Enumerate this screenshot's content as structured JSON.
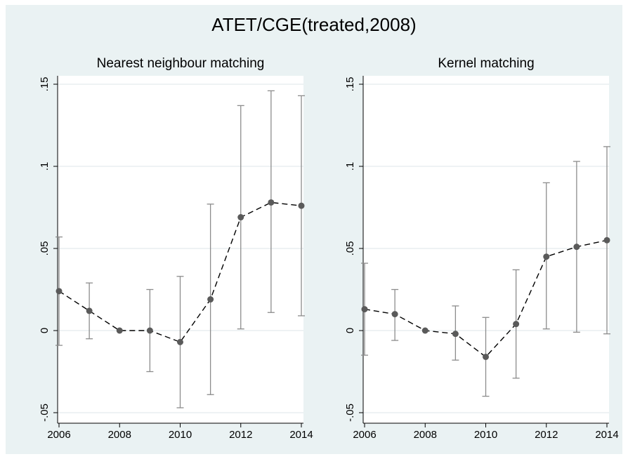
{
  "title": "ATET/CGE(treated,2008)",
  "chart_data": [
    {
      "type": "line",
      "title": "Nearest neighbour matching",
      "x": [
        2006,
        2007,
        2008,
        2009,
        2010,
        2011,
        2012,
        2013,
        2014
      ],
      "y": [
        0.024,
        0.012,
        0.0,
        0.0,
        -0.007,
        0.019,
        0.069,
        0.078,
        0.076
      ],
      "ci_low": [
        -0.009,
        -0.005,
        0.0,
        -0.025,
        -0.047,
        -0.039,
        0.001,
        0.011,
        0.009
      ],
      "ci_high": [
        0.057,
        0.029,
        0.0,
        0.025,
        0.033,
        0.077,
        0.137,
        0.146,
        0.143
      ],
      "xticks": [
        "2006",
        "2008",
        "2010",
        "2012",
        "2014"
      ],
      "yticks": [
        "-.05",
        "0",
        ".05",
        ".1",
        ".15"
      ],
      "xlim": [
        2006,
        2014
      ],
      "ylim": [
        -0.05,
        0.15
      ],
      "grid": true
    },
    {
      "type": "line",
      "title": "Kernel matching",
      "x": [
        2006,
        2007,
        2008,
        2009,
        2010,
        2011,
        2012,
        2013,
        2014
      ],
      "y": [
        0.013,
        0.01,
        0.0,
        -0.002,
        -0.016,
        0.004,
        0.045,
        0.051,
        0.055
      ],
      "ci_low": [
        -0.015,
        -0.006,
        0.0,
        -0.018,
        -0.04,
        -0.029,
        0.001,
        -0.001,
        -0.002
      ],
      "ci_high": [
        0.041,
        0.025,
        0.0,
        0.015,
        0.008,
        0.037,
        0.09,
        0.103,
        0.112
      ],
      "xticks": [
        "2006",
        "2008",
        "2010",
        "2012",
        "2014"
      ],
      "yticks": [
        "-.05",
        "0",
        ".05",
        ".1",
        ".15"
      ],
      "xlim": [
        2006,
        2014
      ],
      "ylim": [
        -0.05,
        0.15
      ],
      "grid": true
    }
  ]
}
